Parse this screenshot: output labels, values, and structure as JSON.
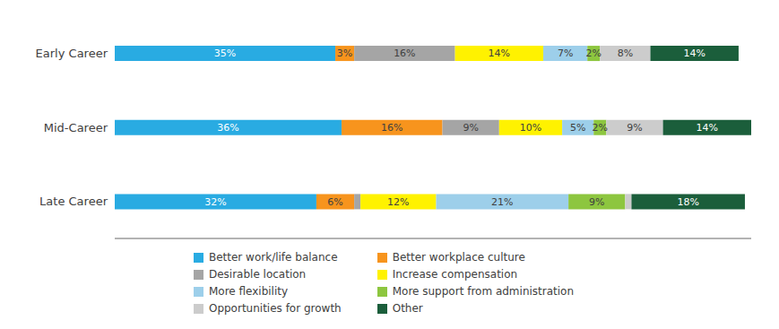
{
  "chart_data": {
    "type": "bar",
    "orientation": "horizontal",
    "stacked": true,
    "data_labels": true,
    "tick_labels": "y",
    "legend": "bottom",
    "grid": false,
    "categories": [
      "Early Career",
      "Mid-Career",
      "Late Career"
    ],
    "xlim": [
      0,
      101
    ],
    "xticks": [],
    "series": [
      {
        "name": "Better work/life balance",
        "color": "#29ABE2",
        "values": [
          35,
          36,
          32
        ],
        "value_labels": [
          "35%",
          "36%",
          "32%"
        ]
      },
      {
        "name": "Better workplace culture",
        "color": "#F7941D",
        "values": [
          3,
          16,
          6
        ],
        "value_labels": [
          "3%",
          "16%",
          "6%"
        ]
      },
      {
        "name": "Desirable location",
        "color": "#A5A5A5",
        "values": [
          16,
          9,
          1
        ],
        "value_labels": [
          "16%",
          "9%",
          null
        ]
      },
      {
        "name": "Increase compensation",
        "color": "#FFF200",
        "values": [
          14,
          10,
          12
        ],
        "value_labels": [
          "14%",
          "10%",
          "12%"
        ]
      },
      {
        "name": "More flexibility",
        "color": "#9DCFEA",
        "values": [
          7,
          5,
          21
        ],
        "value_labels": [
          "7%",
          "5%",
          "21%"
        ]
      },
      {
        "name": "More support from administration",
        "color": "#8DC63F",
        "values": [
          2,
          2,
          9
        ],
        "value_labels": [
          "2%",
          "2%",
          "9%"
        ]
      },
      {
        "name": "Opportunities for growth",
        "color": "#CCCCCC",
        "values": [
          8,
          9,
          1
        ],
        "value_labels": [
          "8%",
          "9%",
          null
        ]
      },
      {
        "name": "Other",
        "color": "#1B5E3B",
        "values": [
          14,
          14,
          18
        ],
        "value_labels": [
          "14%",
          "14%",
          "18%"
        ]
      }
    ]
  }
}
